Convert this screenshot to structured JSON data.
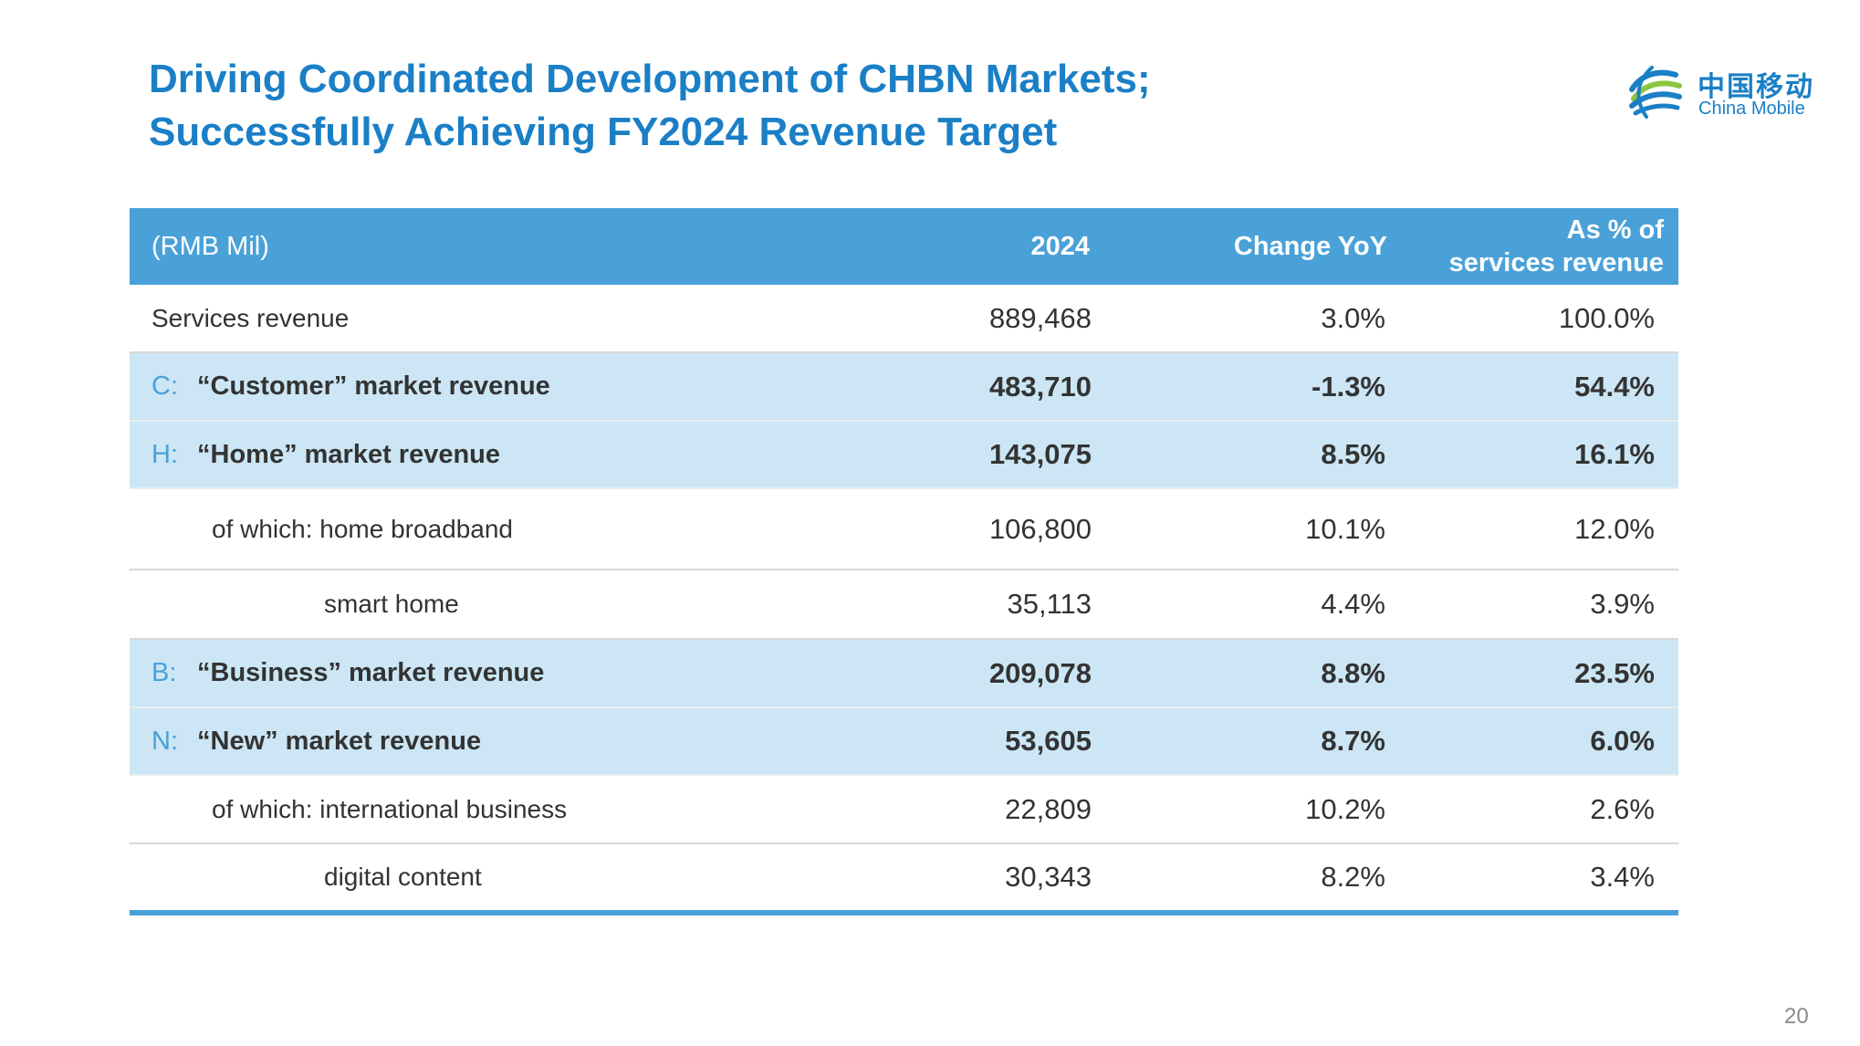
{
  "title": {
    "line1": "Driving Coordinated Development of CHBN Markets;",
    "line2": "Successfully Achieving FY2024 Revenue Target"
  },
  "logo": {
    "chinese": "中国移动",
    "english": "China Mobile",
    "icon": "china-mobile-logo"
  },
  "colors": {
    "title": "#1a7fc6",
    "header_bg": "#4aa1d8",
    "highlight_row": "#cce6f5",
    "letter": "#4aa1d8"
  },
  "table": {
    "headers": {
      "col1": "(RMB Mil)",
      "col2": "2024",
      "col3": "Change YoY",
      "col4_line1": "As % of",
      "col4_line2": "services revenue"
    },
    "rows": [
      {
        "letter": "",
        "label": "Services revenue",
        "value": "889,468",
        "change": "3.0%",
        "share": "100.0%"
      },
      {
        "letter": "C:",
        "label": "“Customer” market revenue",
        "value": "483,710",
        "change": "-1.3%",
        "share": "54.4%"
      },
      {
        "letter": "H:",
        "label": "“Home” market revenue",
        "value": "143,075",
        "change": "8.5%",
        "share": "16.1%"
      },
      {
        "letter": "",
        "label": "of which: home broadband",
        "value": "106,800",
        "change": "10.1%",
        "share": "12.0%"
      },
      {
        "letter": "",
        "label": "smart home",
        "value": "35,113",
        "change": "4.4%",
        "share": "3.9%"
      },
      {
        "letter": "B:",
        "label": "“Business” market revenue",
        "value": "209,078",
        "change": "8.8%",
        "share": "23.5%"
      },
      {
        "letter": "N:",
        "label": "“New” market revenue",
        "value": "53,605",
        "change": "8.7%",
        "share": "6.0%"
      },
      {
        "letter": "",
        "label": "of which: international business",
        "value": "22,809",
        "change": "10.2%",
        "share": "2.6%"
      },
      {
        "letter": "",
        "label": "digital content",
        "value": "30,343",
        "change": "8.2%",
        "share": "3.4%"
      }
    ]
  },
  "page_number": "20"
}
